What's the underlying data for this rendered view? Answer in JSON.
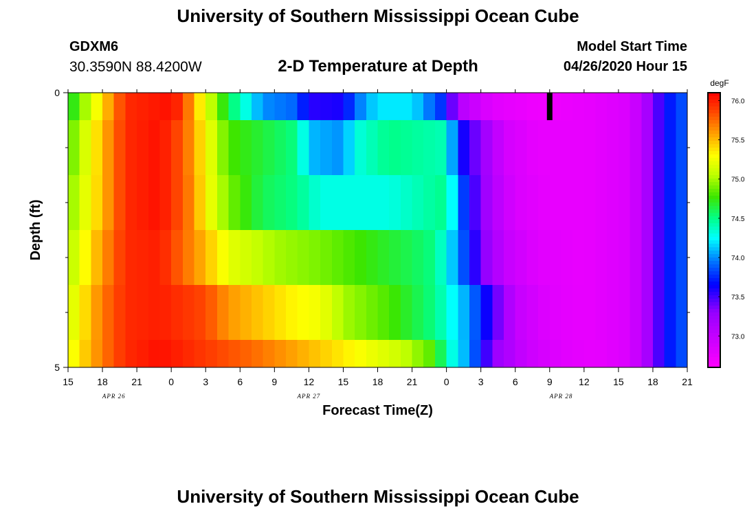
{
  "header": {
    "title": "University of Southern Mississippi Ocean Cube",
    "station": "GDXM6",
    "coordinates": "30.3590N 88.4200W",
    "subtitle": "2-D Temperature at Depth",
    "start_label": "Model Start Time",
    "start_value": "04/26/2020 Hour 15"
  },
  "footer": {
    "title": "University of Southern Mississippi Ocean Cube"
  },
  "chart_data": {
    "type": "heatmap",
    "title": "2-D Temperature at Depth",
    "xlabel": "Forecast Time(Z)",
    "ylabel": "Depth (ft)",
    "x_tick_labels": [
      "15",
      "18",
      "21",
      "0",
      "3",
      "6",
      "9",
      "12",
      "15",
      "18",
      "21",
      "0",
      "3",
      "6",
      "9",
      "12",
      "15",
      "18",
      "21"
    ],
    "date_labels": [
      {
        "text": "APR 26",
        "hour_index": 4
      },
      {
        "text": "APR 27",
        "hour_index": 21
      },
      {
        "text": "APR 28",
        "hour_index": 43
      }
    ],
    "x_range_hours": [
      0,
      54
    ],
    "y_tick_labels": [
      "0",
      "5"
    ],
    "ylim": [
      0,
      5
    ],
    "colorbar": {
      "unit": "degF",
      "range": [
        72.6,
        76.1
      ],
      "tick_labels": [
        "76.0",
        "75.5",
        "75.0",
        "74.5",
        "74.0",
        "73.5",
        "73.0"
      ],
      "tick_values": [
        76.0,
        75.5,
        75.0,
        74.5,
        74.0,
        73.5,
        73.0
      ]
    },
    "grid": false,
    "depth_levels_ft": [
      0,
      0.5,
      1.5,
      2.5,
      3.5,
      4.5,
      5.0
    ],
    "layers": [
      {
        "depth_top_ft": 0.0,
        "depth_bottom_ft": 0.5,
        "keys": [
          [
            0,
            74.6
          ],
          [
            3,
            75.4
          ],
          [
            5,
            75.95
          ],
          [
            9,
            76.05
          ],
          [
            10,
            75.9
          ],
          [
            11,
            75.5
          ],
          [
            12,
            75.2
          ],
          [
            14,
            74.6
          ],
          [
            17,
            74.0
          ],
          [
            20,
            73.9
          ],
          [
            21,
            73.55
          ],
          [
            24,
            73.6
          ],
          [
            25,
            73.9
          ],
          [
            27,
            74.2
          ],
          [
            30,
            74.2
          ],
          [
            33,
            73.7
          ],
          [
            34,
            73.1
          ],
          [
            37,
            72.8
          ],
          [
            41,
            72.7
          ],
          [
            45,
            72.75
          ],
          [
            49,
            72.85
          ],
          [
            51,
            73.3
          ],
          [
            52,
            73.65
          ],
          [
            54,
            73.9
          ]
        ]
      },
      {
        "depth_top_ft": 0.5,
        "depth_bottom_ft": 1.5,
        "keys": [
          [
            0,
            74.8
          ],
          [
            3,
            75.5
          ],
          [
            5,
            75.95
          ],
          [
            8,
            76.05
          ],
          [
            10,
            75.8
          ],
          [
            11,
            75.55
          ],
          [
            12,
            75.3
          ],
          [
            14,
            74.8
          ],
          [
            16,
            74.7
          ],
          [
            20,
            74.5
          ],
          [
            21,
            74.1
          ],
          [
            24,
            74.0
          ],
          [
            25,
            74.3
          ],
          [
            28,
            74.5
          ],
          [
            33,
            74.4
          ],
          [
            34,
            73.7
          ],
          [
            36,
            73.3
          ],
          [
            38,
            72.9
          ],
          [
            41,
            72.75
          ],
          [
            45,
            72.75
          ],
          [
            49,
            72.85
          ],
          [
            51,
            73.3
          ],
          [
            52,
            73.65
          ],
          [
            54,
            73.9
          ]
        ]
      },
      {
        "depth_top_ft": 1.5,
        "depth_bottom_ft": 2.5,
        "keys": [
          [
            0,
            74.9
          ],
          [
            3,
            75.5
          ],
          [
            5,
            75.95
          ],
          [
            8,
            76.05
          ],
          [
            10,
            75.8
          ],
          [
            11,
            75.6
          ],
          [
            12,
            75.3
          ],
          [
            14,
            74.9
          ],
          [
            17,
            74.6
          ],
          [
            20,
            74.5
          ],
          [
            22,
            74.3
          ],
          [
            28,
            74.3
          ],
          [
            33,
            74.5
          ],
          [
            34,
            74.0
          ],
          [
            35,
            73.6
          ],
          [
            37,
            73.1
          ],
          [
            39,
            72.85
          ],
          [
            42,
            72.75
          ],
          [
            45,
            72.75
          ],
          [
            49,
            72.85
          ],
          [
            51,
            73.3
          ],
          [
            52,
            73.65
          ],
          [
            54,
            73.9
          ]
        ]
      },
      {
        "depth_top_ft": 2.5,
        "depth_bottom_ft": 3.5,
        "keys": [
          [
            0,
            75.0
          ],
          [
            3,
            75.6
          ],
          [
            5,
            75.95
          ],
          [
            8,
            76.0
          ],
          [
            10,
            75.75
          ],
          [
            12,
            75.5
          ],
          [
            14,
            75.2
          ],
          [
            18,
            75.0
          ],
          [
            22,
            74.9
          ],
          [
            26,
            74.75
          ],
          [
            30,
            74.6
          ],
          [
            32,
            74.5
          ],
          [
            34,
            74.0
          ],
          [
            36,
            73.4
          ],
          [
            38,
            73.0
          ],
          [
            41,
            72.8
          ],
          [
            45,
            72.75
          ],
          [
            49,
            72.85
          ],
          [
            51,
            73.3
          ],
          [
            52,
            73.65
          ],
          [
            54,
            73.9
          ]
        ]
      },
      {
        "depth_top_ft": 3.5,
        "depth_bottom_ft": 4.5,
        "keys": [
          [
            0,
            75.1
          ],
          [
            3,
            75.7
          ],
          [
            5,
            75.95
          ],
          [
            8,
            76.0
          ],
          [
            12,
            75.85
          ],
          [
            14,
            75.6
          ],
          [
            18,
            75.4
          ],
          [
            20,
            75.3
          ],
          [
            22,
            75.25
          ],
          [
            24,
            75.0
          ],
          [
            28,
            74.8
          ],
          [
            32,
            74.5
          ],
          [
            35,
            74.0
          ],
          [
            37,
            73.5
          ],
          [
            39,
            73.0
          ],
          [
            42,
            72.8
          ],
          [
            45,
            72.75
          ],
          [
            49,
            72.85
          ],
          [
            51,
            73.3
          ],
          [
            52,
            73.65
          ],
          [
            54,
            73.9
          ]
        ]
      },
      {
        "depth_top_ft": 4.5,
        "depth_bottom_ft": 5.0,
        "keys": [
          [
            0,
            75.2
          ],
          [
            3,
            75.7
          ],
          [
            5,
            75.95
          ],
          [
            8,
            76.05
          ],
          [
            12,
            75.9
          ],
          [
            16,
            75.75
          ],
          [
            20,
            75.55
          ],
          [
            25,
            75.3
          ],
          [
            29,
            75.1
          ],
          [
            32,
            74.8
          ],
          [
            33,
            74.4
          ],
          [
            35,
            74.0
          ],
          [
            36,
            73.7
          ],
          [
            37,
            73.3
          ],
          [
            40,
            72.95
          ],
          [
            43,
            72.8
          ],
          [
            46,
            72.75
          ],
          [
            49,
            72.85
          ],
          [
            51,
            73.3
          ],
          [
            52,
            73.65
          ],
          [
            54,
            73.9
          ]
        ]
      }
    ],
    "marker": {
      "hour": 42,
      "depth_top_ft": 0.0,
      "depth_bottom_ft": 0.5,
      "color": "#000000"
    }
  }
}
